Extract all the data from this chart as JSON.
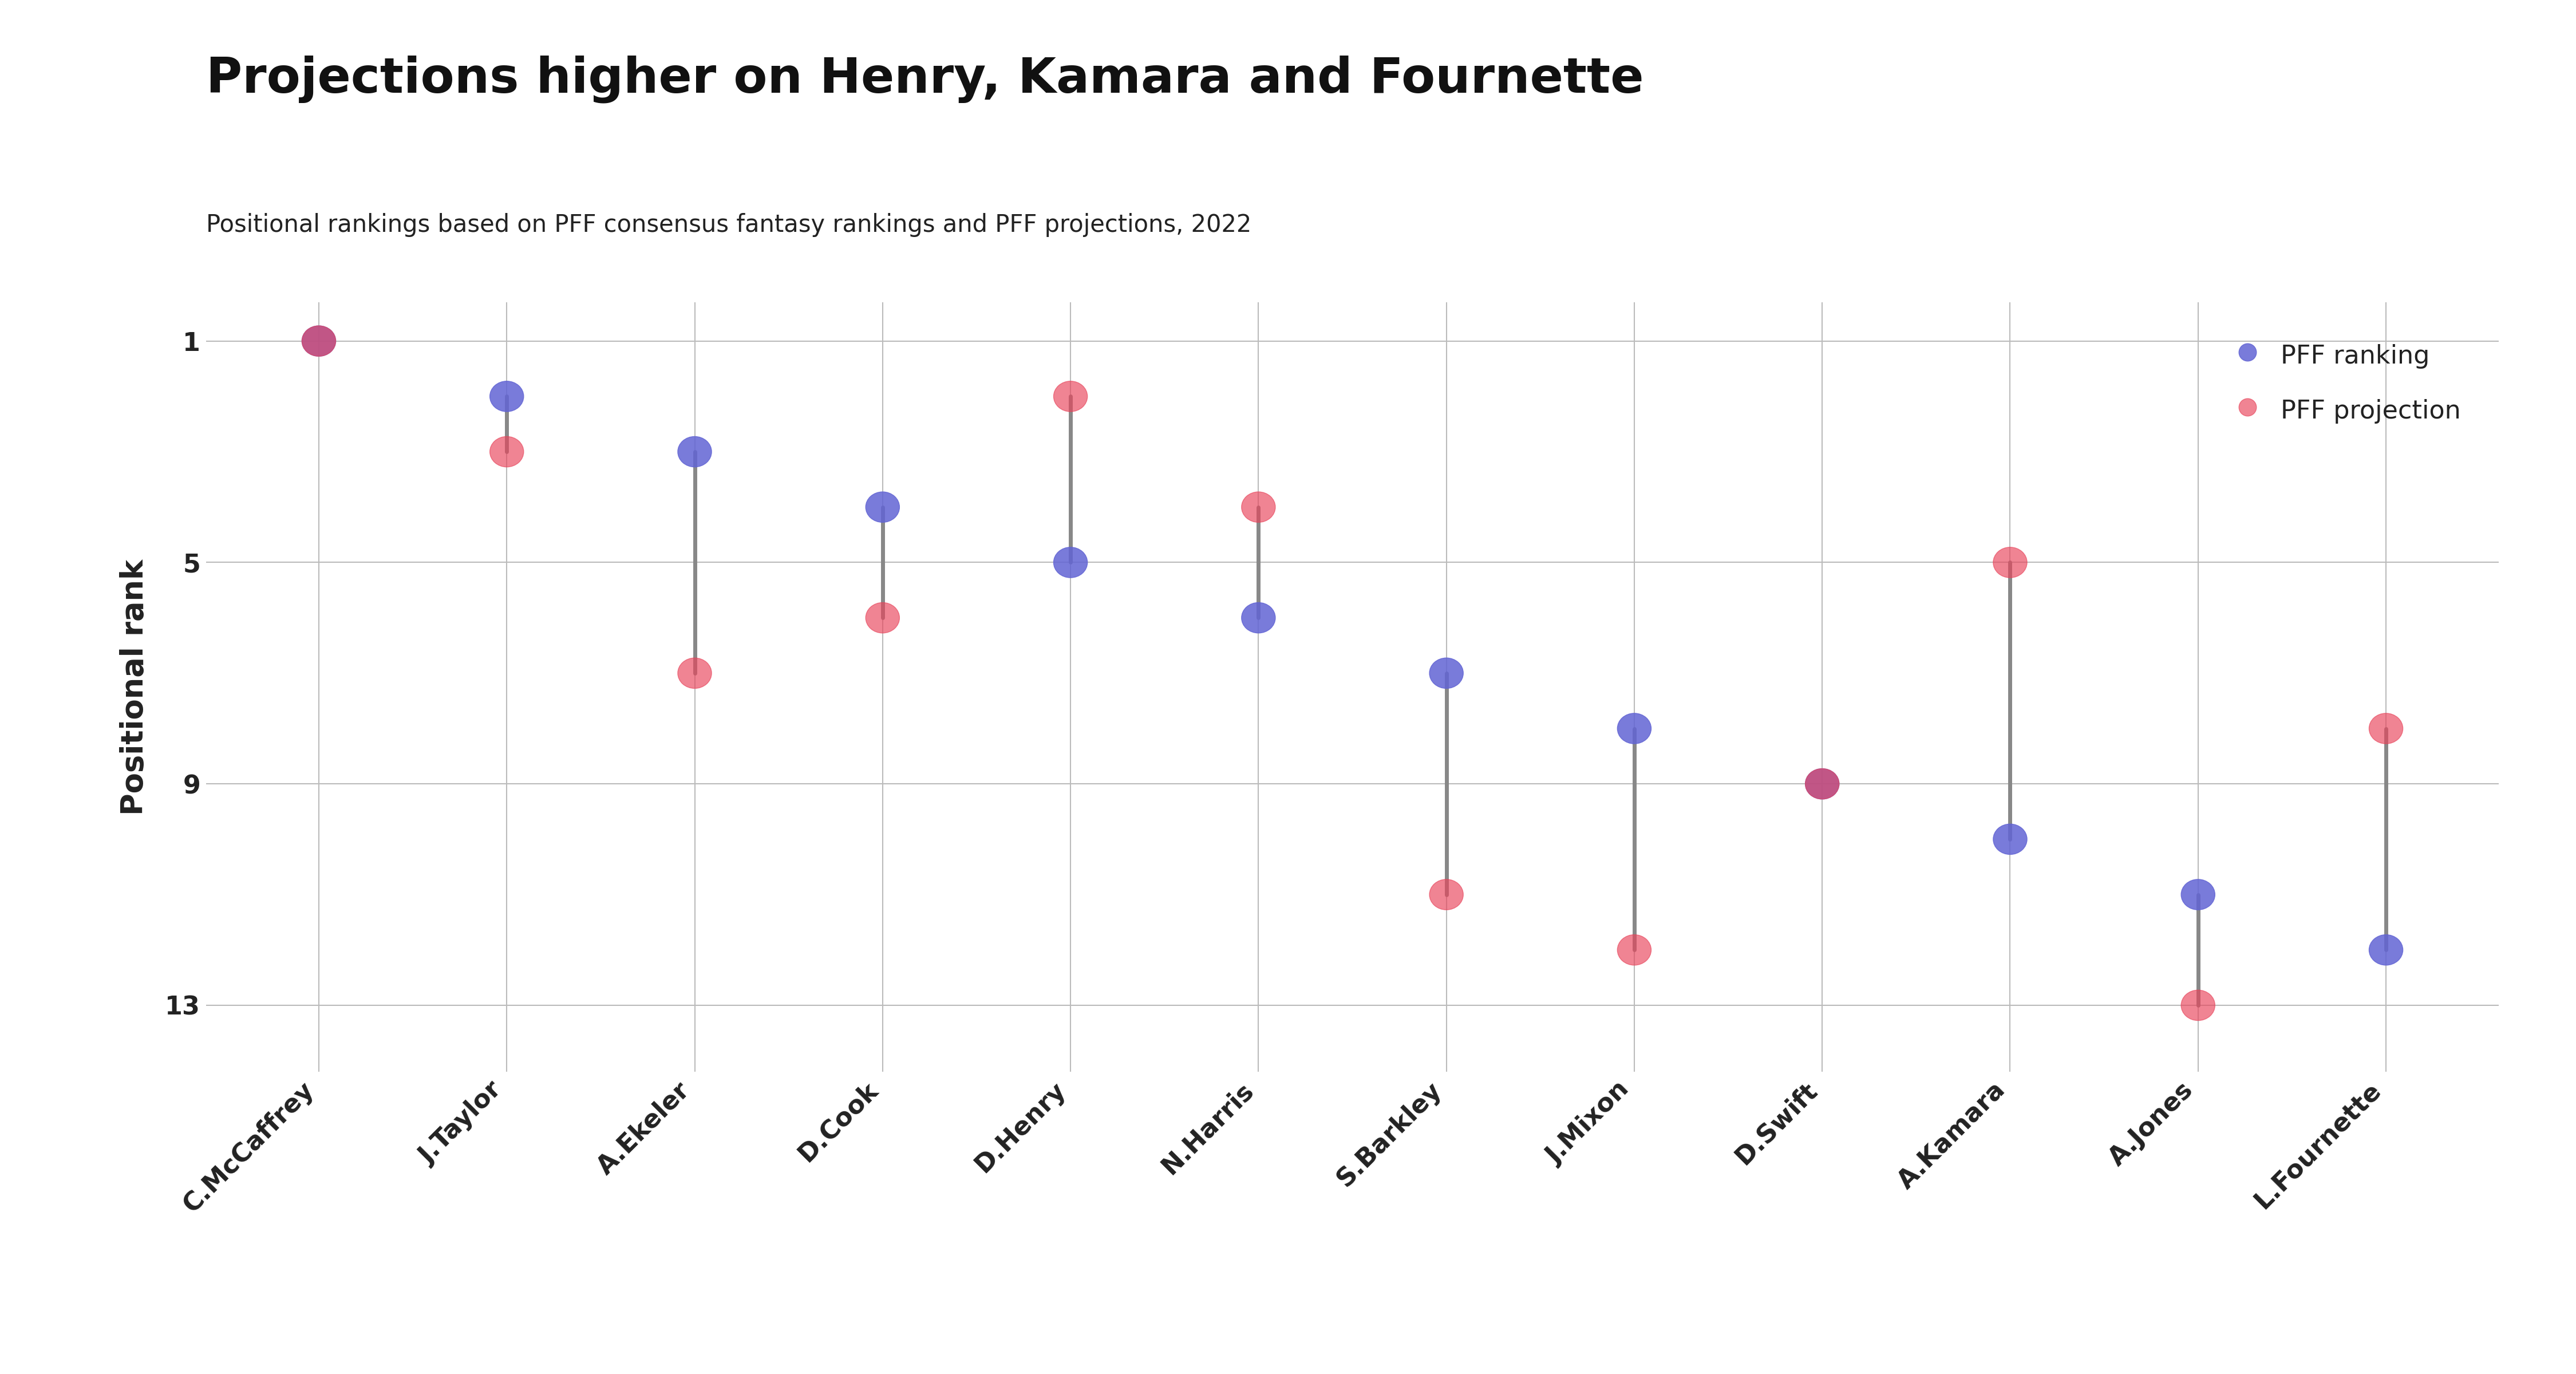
{
  "title": "Projections higher on Henry, Kamara and Fournette",
  "subtitle": "Positional rankings based on PFF consensus fantasy rankings and PFF projections, 2022",
  "ylabel": "Positional rank",
  "players": [
    "C.McCaffrey",
    "J.Taylor",
    "A.Ekeler",
    "D.Cook",
    "D.Henry",
    "N.Harris",
    "S.Barkley",
    "J.Mixon",
    "D.Swift",
    "A.Kamara",
    "A.Jones",
    "L.Fournette"
  ],
  "pff_ranking": [
    1,
    2,
    3,
    4,
    5,
    6,
    7,
    8,
    9,
    10,
    11,
    12
  ],
  "pff_projection": [
    1,
    3,
    7,
    6,
    2,
    4,
    11,
    12,
    9,
    5,
    13,
    8
  ],
  "blue_color": "#6264D4",
  "red_color": "#E8435A",
  "line_color": "#888888",
  "bg_color": "#ffffff",
  "title_fontsize": 62,
  "subtitle_fontsize": 30,
  "ylabel_fontsize": 38,
  "tick_fontsize": 32,
  "legend_fontsize": 32,
  "yticks": [
    1,
    5,
    9,
    13
  ],
  "ylim": [
    14.2,
    0.3
  ]
}
